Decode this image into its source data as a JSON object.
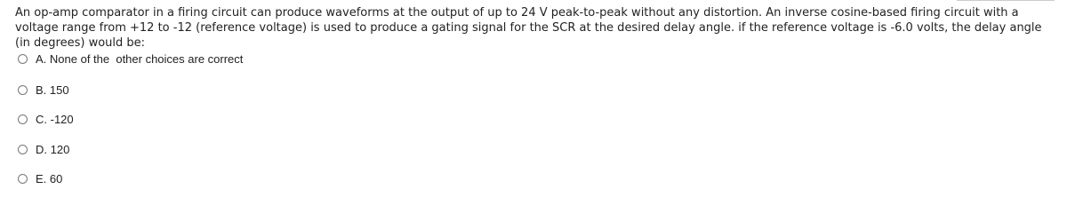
{
  "question": {
    "text": "An op-amp comparator in a firing circuit can produce waveforms at the output of up to 24 V peak-to-peak without any distortion. An inverse cosine-based firing circuit with a voltage range from +12 to -12 (reference voltage) is used to produce a gating signal for the SCR at the desired delay angle. if the reference voltage is -6.0 volts, the delay angle (in degrees) would be:"
  },
  "options": [
    "A. None of the  other choices are correct",
    "B. 150",
    "C. -120",
    "D. 120",
    "E. 60"
  ]
}
